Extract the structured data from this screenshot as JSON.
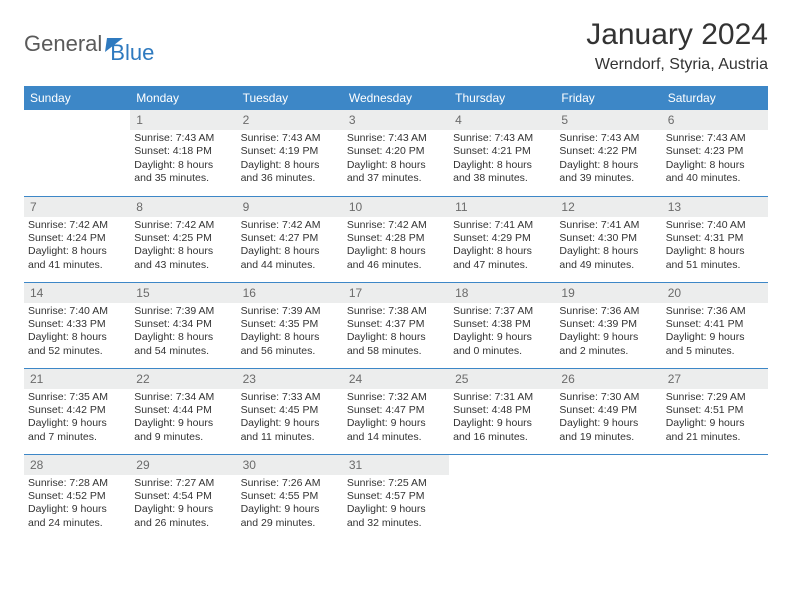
{
  "colors": {
    "header_bg": "#3d87c7",
    "header_text": "#ffffff",
    "daynum_bg": "#eceded",
    "daynum_text": "#6b6b6b",
    "body_text": "#333333",
    "rule": "#3d87c7",
    "logo_gray": "#5a5a5a",
    "logo_blue": "#2f7abf"
  },
  "typography": {
    "title_fontsize": 30,
    "location_fontsize": 16,
    "header_fontsize": 12,
    "daynum_fontsize": 12,
    "body_fontsize": 10.5
  },
  "logo": {
    "word1": "General",
    "word2": "Blue"
  },
  "title": "January 2024",
  "location": "Werndorf, Styria, Austria",
  "weekdays": [
    "Sunday",
    "Monday",
    "Tuesday",
    "Wednesday",
    "Thursday",
    "Friday",
    "Saturday"
  ],
  "weeks": [
    [
      {
        "n": "",
        "sr": "",
        "ss": "",
        "d1": "",
        "d2": ""
      },
      {
        "n": "1",
        "sr": "Sunrise: 7:43 AM",
        "ss": "Sunset: 4:18 PM",
        "d1": "Daylight: 8 hours",
        "d2": "and 35 minutes."
      },
      {
        "n": "2",
        "sr": "Sunrise: 7:43 AM",
        "ss": "Sunset: 4:19 PM",
        "d1": "Daylight: 8 hours",
        "d2": "and 36 minutes."
      },
      {
        "n": "3",
        "sr": "Sunrise: 7:43 AM",
        "ss": "Sunset: 4:20 PM",
        "d1": "Daylight: 8 hours",
        "d2": "and 37 minutes."
      },
      {
        "n": "4",
        "sr": "Sunrise: 7:43 AM",
        "ss": "Sunset: 4:21 PM",
        "d1": "Daylight: 8 hours",
        "d2": "and 38 minutes."
      },
      {
        "n": "5",
        "sr": "Sunrise: 7:43 AM",
        "ss": "Sunset: 4:22 PM",
        "d1": "Daylight: 8 hours",
        "d2": "and 39 minutes."
      },
      {
        "n": "6",
        "sr": "Sunrise: 7:43 AM",
        "ss": "Sunset: 4:23 PM",
        "d1": "Daylight: 8 hours",
        "d2": "and 40 minutes."
      }
    ],
    [
      {
        "n": "7",
        "sr": "Sunrise: 7:42 AM",
        "ss": "Sunset: 4:24 PM",
        "d1": "Daylight: 8 hours",
        "d2": "and 41 minutes."
      },
      {
        "n": "8",
        "sr": "Sunrise: 7:42 AM",
        "ss": "Sunset: 4:25 PM",
        "d1": "Daylight: 8 hours",
        "d2": "and 43 minutes."
      },
      {
        "n": "9",
        "sr": "Sunrise: 7:42 AM",
        "ss": "Sunset: 4:27 PM",
        "d1": "Daylight: 8 hours",
        "d2": "and 44 minutes."
      },
      {
        "n": "10",
        "sr": "Sunrise: 7:42 AM",
        "ss": "Sunset: 4:28 PM",
        "d1": "Daylight: 8 hours",
        "d2": "and 46 minutes."
      },
      {
        "n": "11",
        "sr": "Sunrise: 7:41 AM",
        "ss": "Sunset: 4:29 PM",
        "d1": "Daylight: 8 hours",
        "d2": "and 47 minutes."
      },
      {
        "n": "12",
        "sr": "Sunrise: 7:41 AM",
        "ss": "Sunset: 4:30 PM",
        "d1": "Daylight: 8 hours",
        "d2": "and 49 minutes."
      },
      {
        "n": "13",
        "sr": "Sunrise: 7:40 AM",
        "ss": "Sunset: 4:31 PM",
        "d1": "Daylight: 8 hours",
        "d2": "and 51 minutes."
      }
    ],
    [
      {
        "n": "14",
        "sr": "Sunrise: 7:40 AM",
        "ss": "Sunset: 4:33 PM",
        "d1": "Daylight: 8 hours",
        "d2": "and 52 minutes."
      },
      {
        "n": "15",
        "sr": "Sunrise: 7:39 AM",
        "ss": "Sunset: 4:34 PM",
        "d1": "Daylight: 8 hours",
        "d2": "and 54 minutes."
      },
      {
        "n": "16",
        "sr": "Sunrise: 7:39 AM",
        "ss": "Sunset: 4:35 PM",
        "d1": "Daylight: 8 hours",
        "d2": "and 56 minutes."
      },
      {
        "n": "17",
        "sr": "Sunrise: 7:38 AM",
        "ss": "Sunset: 4:37 PM",
        "d1": "Daylight: 8 hours",
        "d2": "and 58 minutes."
      },
      {
        "n": "18",
        "sr": "Sunrise: 7:37 AM",
        "ss": "Sunset: 4:38 PM",
        "d1": "Daylight: 9 hours",
        "d2": "and 0 minutes."
      },
      {
        "n": "19",
        "sr": "Sunrise: 7:36 AM",
        "ss": "Sunset: 4:39 PM",
        "d1": "Daylight: 9 hours",
        "d2": "and 2 minutes."
      },
      {
        "n": "20",
        "sr": "Sunrise: 7:36 AM",
        "ss": "Sunset: 4:41 PM",
        "d1": "Daylight: 9 hours",
        "d2": "and 5 minutes."
      }
    ],
    [
      {
        "n": "21",
        "sr": "Sunrise: 7:35 AM",
        "ss": "Sunset: 4:42 PM",
        "d1": "Daylight: 9 hours",
        "d2": "and 7 minutes."
      },
      {
        "n": "22",
        "sr": "Sunrise: 7:34 AM",
        "ss": "Sunset: 4:44 PM",
        "d1": "Daylight: 9 hours",
        "d2": "and 9 minutes."
      },
      {
        "n": "23",
        "sr": "Sunrise: 7:33 AM",
        "ss": "Sunset: 4:45 PM",
        "d1": "Daylight: 9 hours",
        "d2": "and 11 minutes."
      },
      {
        "n": "24",
        "sr": "Sunrise: 7:32 AM",
        "ss": "Sunset: 4:47 PM",
        "d1": "Daylight: 9 hours",
        "d2": "and 14 minutes."
      },
      {
        "n": "25",
        "sr": "Sunrise: 7:31 AM",
        "ss": "Sunset: 4:48 PM",
        "d1": "Daylight: 9 hours",
        "d2": "and 16 minutes."
      },
      {
        "n": "26",
        "sr": "Sunrise: 7:30 AM",
        "ss": "Sunset: 4:49 PM",
        "d1": "Daylight: 9 hours",
        "d2": "and 19 minutes."
      },
      {
        "n": "27",
        "sr": "Sunrise: 7:29 AM",
        "ss": "Sunset: 4:51 PM",
        "d1": "Daylight: 9 hours",
        "d2": "and 21 minutes."
      }
    ],
    [
      {
        "n": "28",
        "sr": "Sunrise: 7:28 AM",
        "ss": "Sunset: 4:52 PM",
        "d1": "Daylight: 9 hours",
        "d2": "and 24 minutes."
      },
      {
        "n": "29",
        "sr": "Sunrise: 7:27 AM",
        "ss": "Sunset: 4:54 PM",
        "d1": "Daylight: 9 hours",
        "d2": "and 26 minutes."
      },
      {
        "n": "30",
        "sr": "Sunrise: 7:26 AM",
        "ss": "Sunset: 4:55 PM",
        "d1": "Daylight: 9 hours",
        "d2": "and 29 minutes."
      },
      {
        "n": "31",
        "sr": "Sunrise: 7:25 AM",
        "ss": "Sunset: 4:57 PM",
        "d1": "Daylight: 9 hours",
        "d2": "and 32 minutes."
      },
      {
        "n": "",
        "sr": "",
        "ss": "",
        "d1": "",
        "d2": ""
      },
      {
        "n": "",
        "sr": "",
        "ss": "",
        "d1": "",
        "d2": ""
      },
      {
        "n": "",
        "sr": "",
        "ss": "",
        "d1": "",
        "d2": ""
      }
    ]
  ]
}
